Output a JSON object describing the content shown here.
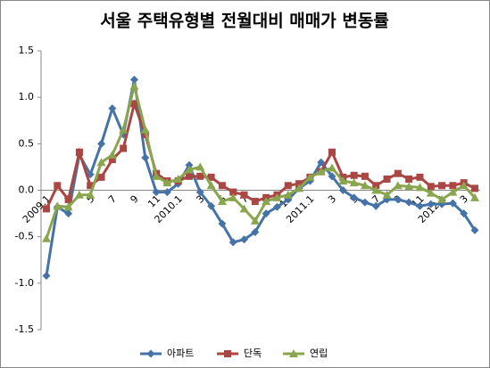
{
  "chart_data": {
    "type": "line",
    "title": "서울 주택유형별 전월대비 매매가 변동률",
    "categories": [
      "2009.1",
      null,
      "3",
      null,
      "5",
      null,
      "7",
      null,
      "9",
      null,
      "11",
      null,
      "2010.1",
      null,
      "3",
      null,
      "5",
      null,
      "7",
      null,
      "9",
      null,
      "11",
      null,
      "2011.1",
      null,
      "3",
      null,
      "5",
      null,
      "7",
      null,
      "9",
      null,
      "11",
      null,
      "2012.1",
      null,
      "3",
      null
    ],
    "series": [
      {
        "name": "아파트",
        "color": "#4572a7",
        "marker": "diamond",
        "values": [
          -0.92,
          -0.18,
          -0.25,
          0.38,
          0.17,
          0.5,
          0.88,
          0.6,
          1.19,
          0.35,
          -0.02,
          -0.02,
          0.07,
          0.27,
          -0.02,
          -0.17,
          -0.36,
          -0.56,
          -0.53,
          -0.45,
          -0.25,
          -0.18,
          -0.1,
          0.02,
          0.1,
          0.3,
          0.15,
          0.0,
          -0.08,
          -0.13,
          -0.17,
          -0.1,
          -0.1,
          -0.13,
          -0.17,
          -0.15,
          -0.15,
          -0.14,
          -0.25,
          -0.43
        ]
      },
      {
        "name": "단독",
        "color": "#aa4643",
        "marker": "square",
        "values": [
          -0.2,
          0.05,
          -0.1,
          0.41,
          0.05,
          0.14,
          0.33,
          0.45,
          0.93,
          0.6,
          0.18,
          0.1,
          0.1,
          0.15,
          0.15,
          0.14,
          0.05,
          -0.02,
          -0.05,
          -0.12,
          -0.08,
          -0.05,
          0.05,
          0.07,
          0.14,
          0.2,
          0.41,
          0.14,
          0.16,
          0.15,
          0.05,
          0.12,
          0.18,
          0.12,
          0.14,
          0.04,
          0.05,
          0.05,
          0.08,
          0.02
        ]
      },
      {
        "name": "연립",
        "color": "#89a54e",
        "marker": "triangle",
        "values": [
          -0.52,
          -0.17,
          -0.18,
          -0.05,
          -0.05,
          0.3,
          0.38,
          0.65,
          1.12,
          0.65,
          0.15,
          0.08,
          0.12,
          0.22,
          0.25,
          0.05,
          -0.12,
          -0.08,
          -0.2,
          -0.33,
          -0.12,
          -0.08,
          -0.05,
          0.02,
          0.14,
          0.2,
          0.24,
          0.1,
          0.08,
          0.05,
          0.0,
          -0.05,
          0.05,
          0.04,
          0.03,
          -0.03,
          -0.1,
          -0.02,
          0.05,
          -0.08
        ]
      }
    ],
    "ylim": [
      -1.5,
      1.5
    ],
    "yticks": [
      -1.5,
      {
        "value": -1,
        "label": "-1.0"
      },
      -0.5,
      {
        "value": 0,
        "label": "0.0"
      },
      0.5,
      {
        "value": 1,
        "label": "1.0"
      },
      1.5
    ],
    "grid": false,
    "legend": "bottom"
  }
}
